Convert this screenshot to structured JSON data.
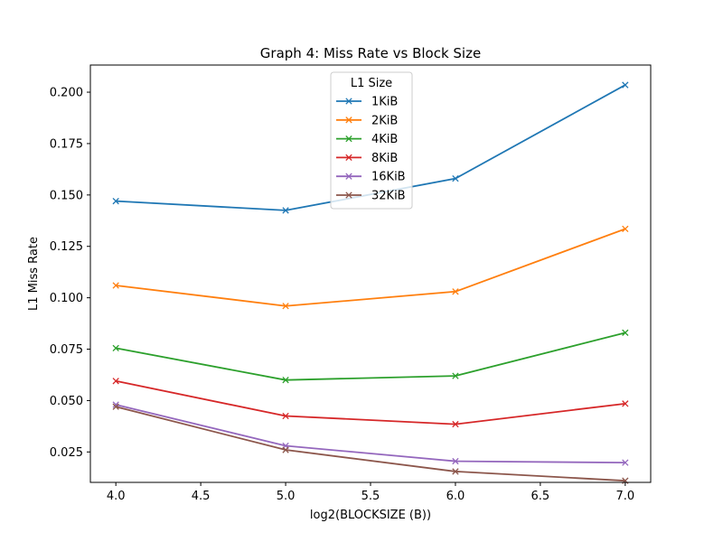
{
  "chart_data": {
    "type": "line",
    "title": "Graph 4: Miss Rate vs Block Size",
    "xlabel": "log2(BLOCKSIZE (B))",
    "ylabel": "L1 Miss Rate",
    "x": [
      4.0,
      5.0,
      6.0,
      7.0
    ],
    "xlim": [
      3.85,
      7.15
    ],
    "ylim": [
      0.0102,
      0.2132
    ],
    "xticks": [
      4.0,
      4.5,
      5.0,
      5.5,
      6.0,
      6.5,
      7.0
    ],
    "xtick_labels": [
      "4.0",
      "4.5",
      "5.0",
      "5.5",
      "6.0",
      "6.5",
      "7.0"
    ],
    "yticks": [
      0.025,
      0.05,
      0.075,
      0.1,
      0.125,
      0.15,
      0.175,
      0.2
    ],
    "ytick_labels": [
      "0.025",
      "0.050",
      "0.075",
      "0.100",
      "0.125",
      "0.150",
      "0.175",
      "0.200"
    ],
    "grid": false,
    "marker": "x",
    "legend": {
      "title": "L1 Size",
      "placement": "upper-center"
    },
    "series": [
      {
        "name": "1KiB",
        "color": "#1f77b4",
        "values": [
          0.147,
          0.1425,
          0.158,
          0.2035
        ]
      },
      {
        "name": "2KiB",
        "color": "#ff7f0e",
        "values": [
          0.106,
          0.096,
          0.103,
          0.1335
        ]
      },
      {
        "name": "4KiB",
        "color": "#2ca02c",
        "values": [
          0.0755,
          0.06,
          0.062,
          0.083
        ]
      },
      {
        "name": "8KiB",
        "color": "#d62728",
        "values": [
          0.0595,
          0.0425,
          0.0385,
          0.0485
        ]
      },
      {
        "name": "16KiB",
        "color": "#9467bd",
        "values": [
          0.048,
          0.028,
          0.0205,
          0.0198
        ]
      },
      {
        "name": "32KiB",
        "color": "#8c564b",
        "values": [
          0.047,
          0.026,
          0.0155,
          0.011
        ]
      }
    ]
  }
}
